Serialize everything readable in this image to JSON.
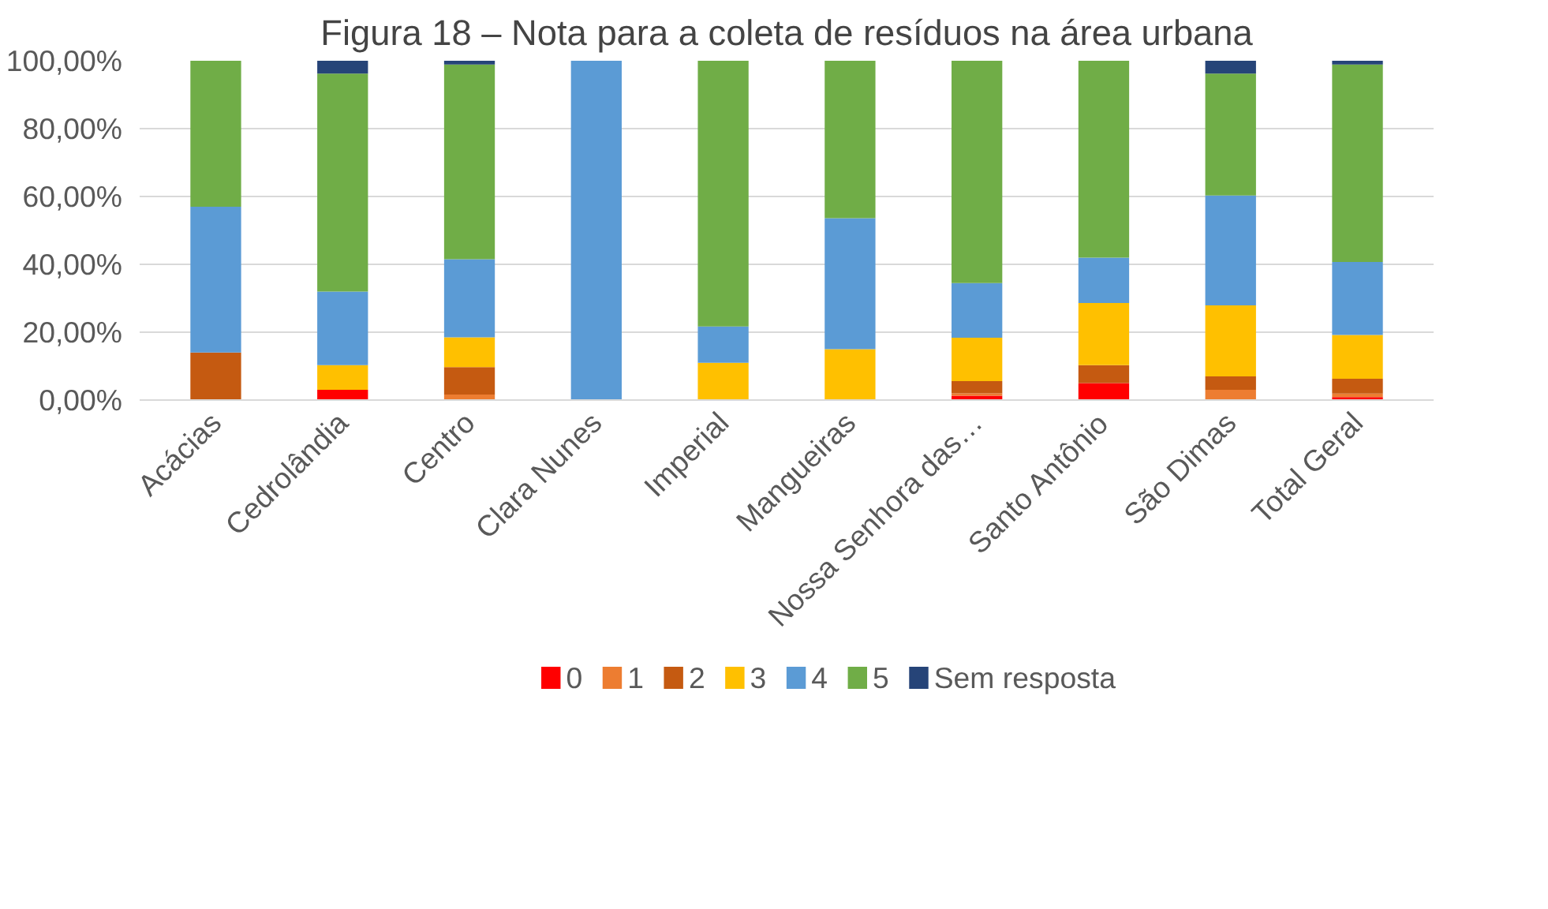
{
  "chart_data": {
    "type": "bar",
    "stacked": true,
    "title": "Figura 18 – Nota para a coleta de resíduos na área urbana",
    "categories": [
      "Acácias",
      "Cedrolândia",
      "Centro",
      "Clara Nunes",
      "Imperial",
      "Mangueiras",
      "Nossa Senhora das…",
      "Santo Antônio",
      "São Dimas",
      "Total Geral"
    ],
    "series": [
      {
        "name": "0",
        "color": "#ff0000",
        "values": [
          0,
          3,
          0,
          0,
          0,
          0,
          1.3,
          5,
          0,
          0.9
        ]
      },
      {
        "name": "1",
        "color": "#ed7d31",
        "values": [
          0,
          0,
          1.6,
          0,
          0,
          0,
          0.7,
          0,
          3,
          1
        ]
      },
      {
        "name": "2",
        "color": "#c55a11",
        "values": [
          14,
          0,
          8.1,
          0,
          0,
          0,
          3.6,
          5.3,
          4,
          4.4
        ]
      },
      {
        "name": "3",
        "color": "#ffc000",
        "values": [
          0,
          7.3,
          8.8,
          0,
          11,
          15,
          12.8,
          18.3,
          20.9,
          12.9
        ]
      },
      {
        "name": "4",
        "color": "#5b9bd5",
        "values": [
          43,
          21.7,
          23,
          100,
          10.7,
          38.6,
          16.1,
          13.4,
          32.4,
          21.5
        ]
      },
      {
        "name": "5",
        "color": "#70ad47",
        "values": [
          43,
          64.2,
          57.4,
          0,
          78.3,
          46.4,
          65.5,
          58,
          35.9,
          58.2
        ]
      },
      {
        "name": "Sem resposta",
        "color": "#264478",
        "values": [
          0,
          3.8,
          1.1,
          0,
          0,
          0,
          0,
          0,
          3.8,
          1.1
        ]
      }
    ],
    "ylim": [
      0,
      100
    ],
    "yticks": [
      {
        "value": 0,
        "label": "0,00%"
      },
      {
        "value": 20,
        "label": "20,00%"
      },
      {
        "value": 40,
        "label": "40,00%"
      },
      {
        "value": 60,
        "label": "60,00%"
      },
      {
        "value": 80,
        "label": "80,00%"
      },
      {
        "value": 100,
        "label": "100,00%"
      }
    ],
    "grid": "y",
    "legend": "bottom"
  }
}
